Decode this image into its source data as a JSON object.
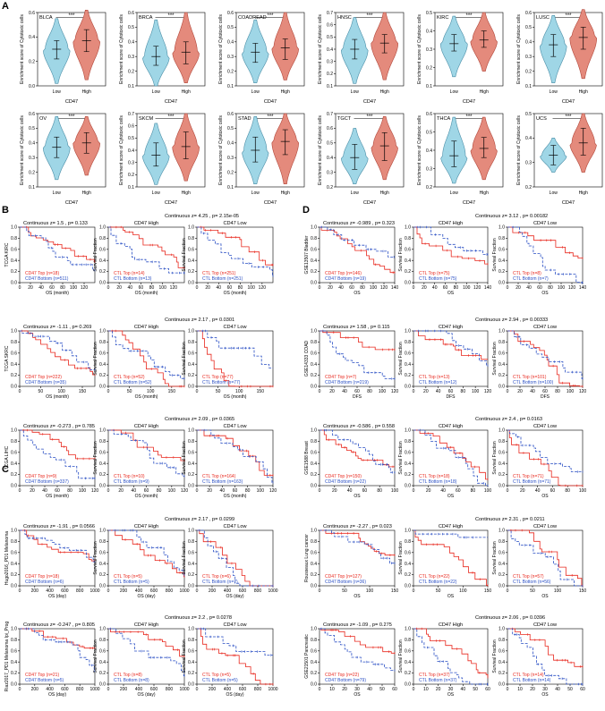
{
  "panels": {
    "A": "A",
    "B": "B",
    "C": "C",
    "D": "D"
  },
  "colors": {
    "low": "#9fd6e6",
    "high": "#e48a7c",
    "low_stroke": "#4a8ea7",
    "high_stroke": "#b2473a",
    "red": "#e8281e",
    "blue": "#2a4fc4"
  },
  "violin": {
    "ylabel": "Enrichment score of Cytotoxic cells",
    "xlabel": "CD47",
    "groups": [
      "Low",
      "High"
    ],
    "sig": "***"
  },
  "chart_data": [
    {
      "type": "violin",
      "title": "BLCA",
      "ylim": [
        0.0,
        0.6
      ],
      "ticks": [
        0.0,
        0.2,
        0.4,
        0.6
      ],
      "median": [
        0.3,
        0.37
      ],
      "q": [
        [
          0.22,
          0.37
        ],
        [
          0.28,
          0.46
        ]
      ],
      "range": [
        [
          0.02,
          0.55
        ],
        [
          0.05,
          0.62
        ]
      ]
    },
    {
      "type": "violin",
      "title": "BRCA",
      "ylim": [
        0.1,
        0.6
      ],
      "ticks": [
        0.1,
        0.2,
        0.3,
        0.4,
        0.5,
        0.6
      ],
      "median": [
        0.3,
        0.33
      ],
      "q": [
        [
          0.24,
          0.37
        ],
        [
          0.25,
          0.4
        ]
      ],
      "range": [
        [
          0.1,
          0.55
        ],
        [
          0.12,
          0.6
        ]
      ]
    },
    {
      "type": "violin",
      "title": "COADREAD",
      "ylim": [
        0.1,
        0.6
      ],
      "ticks": [
        0.1,
        0.2,
        0.3,
        0.4,
        0.5,
        0.6
      ],
      "median": [
        0.33,
        0.36
      ],
      "q": [
        [
          0.26,
          0.39
        ],
        [
          0.28,
          0.42
        ]
      ],
      "range": [
        [
          0.12,
          0.55
        ],
        [
          0.14,
          0.6
        ]
      ]
    },
    {
      "type": "violin",
      "title": "HNSC",
      "ylim": [
        0.1,
        0.7
      ],
      "ticks": [
        0.1,
        0.2,
        0.3,
        0.4,
        0.5,
        0.6,
        0.7
      ],
      "median": [
        0.4,
        0.45
      ],
      "q": [
        [
          0.32,
          0.48
        ],
        [
          0.37,
          0.52
        ]
      ],
      "range": [
        [
          0.12,
          0.66
        ],
        [
          0.15,
          0.7
        ]
      ]
    },
    {
      "type": "violin",
      "title": "KIRC",
      "ylim": [
        0.1,
        0.5
      ],
      "ticks": [
        0.1,
        0.2,
        0.3,
        0.4,
        0.5
      ],
      "median": [
        0.33,
        0.35
      ],
      "q": [
        [
          0.29,
          0.38
        ],
        [
          0.31,
          0.4
        ]
      ],
      "range": [
        [
          0.15,
          0.48
        ],
        [
          0.18,
          0.5
        ]
      ]
    },
    {
      "type": "violin",
      "title": "LUSC",
      "ylim": [
        0.1,
        0.6
      ],
      "ticks": [
        0.1,
        0.2,
        0.3,
        0.4,
        0.5,
        0.6
      ],
      "median": [
        0.38,
        0.43
      ],
      "q": [
        [
          0.3,
          0.45
        ],
        [
          0.35,
          0.5
        ]
      ],
      "range": [
        [
          0.12,
          0.58
        ],
        [
          0.15,
          0.62
        ]
      ]
    },
    {
      "type": "violin",
      "title": "OV",
      "ylim": [
        0.1,
        0.6
      ],
      "ticks": [
        0.1,
        0.2,
        0.3,
        0.4,
        0.5,
        0.6
      ],
      "median": [
        0.37,
        0.4
      ],
      "q": [
        [
          0.3,
          0.44
        ],
        [
          0.33,
          0.47
        ]
      ],
      "range": [
        [
          0.15,
          0.58
        ],
        [
          0.18,
          0.58
        ]
      ]
    },
    {
      "type": "violin",
      "title": "SKCM",
      "ylim": [
        0.1,
        0.7
      ],
      "ticks": [
        0.1,
        0.2,
        0.3,
        0.4,
        0.5,
        0.6,
        0.7
      ],
      "median": [
        0.36,
        0.43
      ],
      "q": [
        [
          0.27,
          0.46
        ],
        [
          0.33,
          0.55
        ]
      ],
      "range": [
        [
          0.12,
          0.62
        ],
        [
          0.15,
          0.7
        ]
      ]
    },
    {
      "type": "violin",
      "title": "STAD",
      "ylim": [
        0.1,
        0.6
      ],
      "ticks": [
        0.1,
        0.2,
        0.3,
        0.4,
        0.5,
        0.6
      ],
      "median": [
        0.35,
        0.41
      ],
      "q": [
        [
          0.27,
          0.44
        ],
        [
          0.32,
          0.49
        ]
      ],
      "range": [
        [
          0.12,
          0.58
        ],
        [
          0.12,
          0.6
        ]
      ]
    },
    {
      "type": "violin",
      "title": "TGCT",
      "ylim": [
        0.2,
        0.7
      ],
      "ticks": [
        0.2,
        0.3,
        0.4,
        0.5,
        0.6,
        0.7
      ],
      "median": [
        0.4,
        0.48
      ],
      "q": [
        [
          0.32,
          0.49
        ],
        [
          0.38,
          0.57
        ]
      ],
      "range": [
        [
          0.22,
          0.6
        ],
        [
          0.25,
          0.68
        ]
      ]
    },
    {
      "type": "violin",
      "title": "THCA",
      "ylim": [
        0.2,
        0.6
      ],
      "ticks": [
        0.2,
        0.3,
        0.4,
        0.5,
        0.6
      ],
      "median": [
        0.37,
        0.41
      ],
      "q": [
        [
          0.31,
          0.45
        ],
        [
          0.36,
          0.47
        ]
      ],
      "range": [
        [
          0.22,
          0.58
        ],
        [
          0.24,
          0.58
        ]
      ]
    },
    {
      "type": "violin",
      "title": "UCS",
      "ylim": [
        0.2,
        0.5
      ],
      "ticks": [
        0.2,
        0.3,
        0.4,
        0.5
      ],
      "median": [
        0.33,
        0.38
      ],
      "q": [
        [
          0.29,
          0.37
        ],
        [
          0.33,
          0.44
        ]
      ],
      "range": [
        [
          0.26,
          0.4
        ],
        [
          0.26,
          0.5
        ]
      ]
    }
  ],
  "km_rows": [
    {
      "id": "B1",
      "ylabel": "TCGA KIRC",
      "xlabel": "OS (month)",
      "xmax": 140,
      "xticks": [
        0,
        20,
        40,
        60,
        80,
        100,
        120
      ],
      "stat": "Continuous z= 1.5 , p= 0.133",
      "stat2": "Continuous z= 4.25 , p= 2.15e-05",
      "legend": [
        [
          "CD47 Top (n=18)",
          "CD47 Bottom (n=511)"
        ],
        [
          "CTL Top (n=14)",
          "CTL Bottom (n=13)"
        ],
        [
          "CTL Top (n=251)",
          "CTL Bottom (n=251)"
        ]
      ]
    },
    {
      "id": "B2",
      "ylabel": "TCGA SKRC",
      "xlabel": "OS (month)",
      "xmax": 180,
      "xticks": [
        0,
        50,
        100,
        150
      ],
      "stat": "Continuous z= -1.11 , p= 0.269",
      "stat2": "Continuous z= 2.17 , p= 0.0301",
      "legend": [
        [
          "CD47 Top (n=222)",
          "CD47 Bottom (n=35)"
        ],
        [
          "CTL Top (n=52)",
          "CTL Bottom (n=52)"
        ],
        [
          "CTL Top (n=77)",
          "CTL Bottom (n=77)"
        ]
      ]
    },
    {
      "id": "B3",
      "ylabel": "TCGA LIHC",
      "xlabel": "OS (month)",
      "xmax": 120,
      "xticks": [
        0,
        20,
        40,
        60,
        80,
        100,
        120
      ],
      "stat": "Continuous z= -0.273 , p= 0.785",
      "stat2": "Continuous z= 2.09 , p= 0.0365",
      "legend": [
        [
          "CD47 Top (n=9)",
          "CD47 Bottom (n=337)"
        ],
        [
          "CTL Top (n=10)",
          "CTL Bottom (n=9)"
        ],
        [
          "CTL Top (n=164)",
          "CTL Bottom (n=163)"
        ]
      ]
    },
    {
      "id": "C1",
      "ylabel": "Hugo2016_PD1 Melanoma",
      "xlabel": "OS (day)",
      "xmax": 1000,
      "xticks": [
        0,
        200,
        400,
        600,
        800,
        1000
      ],
      "stat": "Continuous z= -1.91 , p= 0.0566",
      "stat2": "Continuous z= 2.17 , p= 0.0299",
      "legend": [
        [
          "CD47 Top (n=18)",
          "CD47 Bottom (n=6)"
        ],
        [
          "CTL Top (n=5)",
          "CTL Bottom (n=5)"
        ],
        [
          "CTL Top (n=6)",
          "CTL Bottom (n=7)"
        ]
      ]
    },
    {
      "id": "C2",
      "ylabel": "Riaz2017_PD1 Melanoma Ipi_Prog",
      "xlabel": "OS (day)",
      "xmax": 1000,
      "xticks": [
        0,
        200,
        400,
        600,
        800,
        1000
      ],
      "stat": "Continuous z= -0.247 , p= 0.805",
      "stat2": "Continuous z= 2.2 , p= 0.0278",
      "legend": [
        [
          "CD47 Top (n=21)",
          "CD47 Bottom (n=5)"
        ],
        [
          "CTL Top (n=8)",
          "CTL Bottom (n=8)"
        ],
        [
          "CTL Top (n=5)",
          "CTL Bottom (n=5)"
        ]
      ]
    },
    {
      "id": "D1",
      "ylabel": "GSE13507 Bladder",
      "xlabel": "OS",
      "xmax": 140,
      "xticks": [
        0,
        20,
        40,
        60,
        80,
        100,
        120,
        140
      ],
      "stat": "Continuous z= -0.989 , p= 0.323",
      "stat2": "Continuous z= 3.12 , p= 0.00182",
      "legend": [
        [
          "CD47 Top (n=146)",
          "CD47 Bottom (n=19)"
        ],
        [
          "CTL Top (n=75)",
          "CTL Bottom (n=75)"
        ],
        [
          "CTL Top (n=8)",
          "CTL Bottom (n=7)"
        ]
      ]
    },
    {
      "id": "D2",
      "ylabel": "GSE14333 COAD",
      "xlabel": "DFS",
      "xmax": 120,
      "xticks": [
        0,
        20,
        40,
        60,
        80,
        100,
        120
      ],
      "stat": "Continuous z= 1.58 , p= 0.115",
      "stat2": "Continuous z= 2.94 , p= 0.00333",
      "legend": [
        [
          "CD47 Top (n=7)",
          "CD47 Bottom (n=219)"
        ],
        [
          "CTL Top (n=13)",
          "CTL Bottom (n=12)"
        ],
        [
          "CTL Top (n=101)",
          "CTL Bottom (n=100)"
        ]
      ]
    },
    {
      "id": "D3",
      "ylabel": "GSE1588 Breast",
      "xlabel": "OS",
      "xmax": 100,
      "xticks": [
        0,
        20,
        40,
        60,
        80,
        100
      ],
      "stat": "Continuous z= -0.586 , p= 0.558",
      "stat2": "Continuous z= 2.4 , p= 0.0163",
      "legend": [
        [
          "CD47 Top (n=150)",
          "CD47 Bottom (n=22)"
        ],
        [
          "CTL Top (n=18)",
          "CTL Bottom (n=18)"
        ],
        [
          "CTL Top (n=71)",
          "CTL Bottom (n=71)"
        ]
      ]
    },
    {
      "id": "D4",
      "ylabel": "Rousseaux Lung cancer",
      "xlabel": "OS",
      "xmax": 150,
      "xticks": [
        0,
        50,
        100,
        150
      ],
      "stat": "Continuous z= -2.27 , p= 0.023",
      "stat2": "Continuous z= 2.31 , p= 0.0211",
      "legend": [
        [
          "CD47 Top (n=127)",
          "CD47 Bottom (n=36)"
        ],
        [
          "CTL Top (n=22)",
          "CTL Bottom (n=22)"
        ],
        [
          "CTL Top (n=57)",
          "CTL Bottom (n=56)"
        ]
      ]
    },
    {
      "id": "D5",
      "ylabel": "GSE21501 Pancreatic",
      "xlabel": "OS",
      "xmax": 60,
      "xticks": [
        0,
        10,
        20,
        30,
        40,
        50,
        60
      ],
      "stat": "Continuous z= -1.09 , p= 0.275",
      "stat2": "Continuous z= 2.06 , p= 0.0396",
      "legend": [
        [
          "CD47 Top (n=22)",
          "CD47 Bottom (n=79)"
        ],
        [
          "CTL Top (n=37)",
          "CTL Bottom (n=37)"
        ],
        [
          "CTL Top (n=14)",
          "CTL Bottom (n=14)"
        ]
      ]
    }
  ],
  "km": {
    "sub_high": "CD47 High",
    "sub_low": "CD47 Low",
    "ylabel2": "Survival Fraction",
    "yticks": [
      0.0,
      0.2,
      0.4,
      0.6,
      0.8,
      1.0
    ]
  }
}
